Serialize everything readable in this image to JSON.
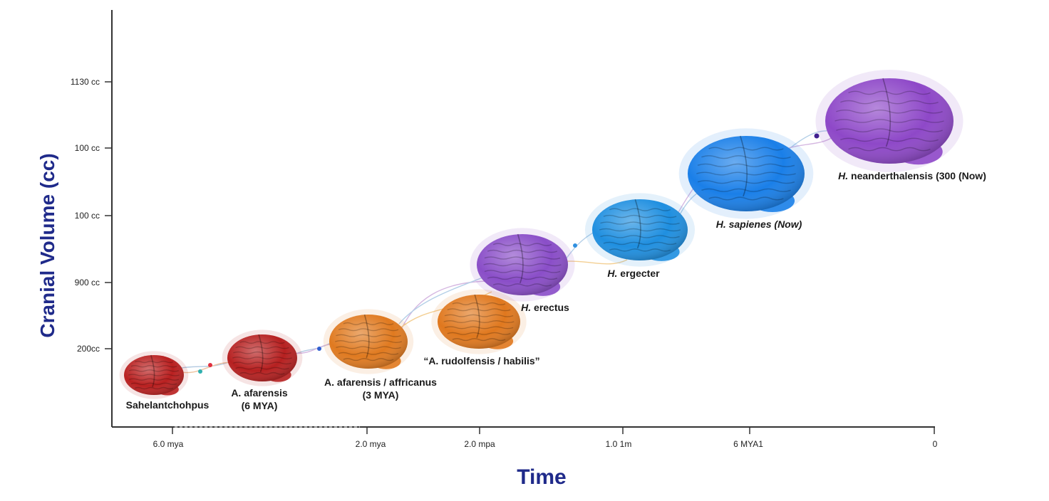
{
  "chart_data": {
    "type": "scatter",
    "ylabel": "Cranial Volume (cc)",
    "xlabel": "Time",
    "y_tick_labels": [
      "200cc",
      "900 cc",
      "100 cc",
      "100 cc",
      "1130 cc"
    ],
    "x_tick_labels": [
      "6.0 mya",
      "2.0 mya",
      "2.0 mpa",
      "1.0 1m",
      "6 MYA1",
      "0"
    ],
    "species": [
      {
        "lines": [
          "Sahelantchohpus"
        ],
        "color": "#b92020",
        "italic_prefix": ""
      },
      {
        "lines": [
          "A. afarensis",
          "(6 MYA)"
        ],
        "color": "#b62020",
        "italic_prefix": ""
      },
      {
        "lines": [
          "A. afarensis / affricanus",
          "(3 MYA)"
        ],
        "color": "#e07a20",
        "italic_prefix": ""
      },
      {
        "lines": [
          "“A. rudolfensis / habilis”"
        ],
        "color": "#e0781e",
        "italic_prefix": ""
      },
      {
        "lines": [
          "H. erectus"
        ],
        "color": "#8a4ec8",
        "italic_prefix": "H."
      },
      {
        "lines": [
          "H. ergecter"
        ],
        "color": "#1f8fe0",
        "italic_prefix": "H."
      },
      {
        "lines": [
          "H. sapienes (Now)"
        ],
        "color": "#1a7fe8",
        "italic_prefix": ""
      },
      {
        "lines": [
          "H. neanderthalensis (300 (Now)"
        ],
        "color": "#8e48c8",
        "italic_prefix": "H."
      }
    ]
  }
}
